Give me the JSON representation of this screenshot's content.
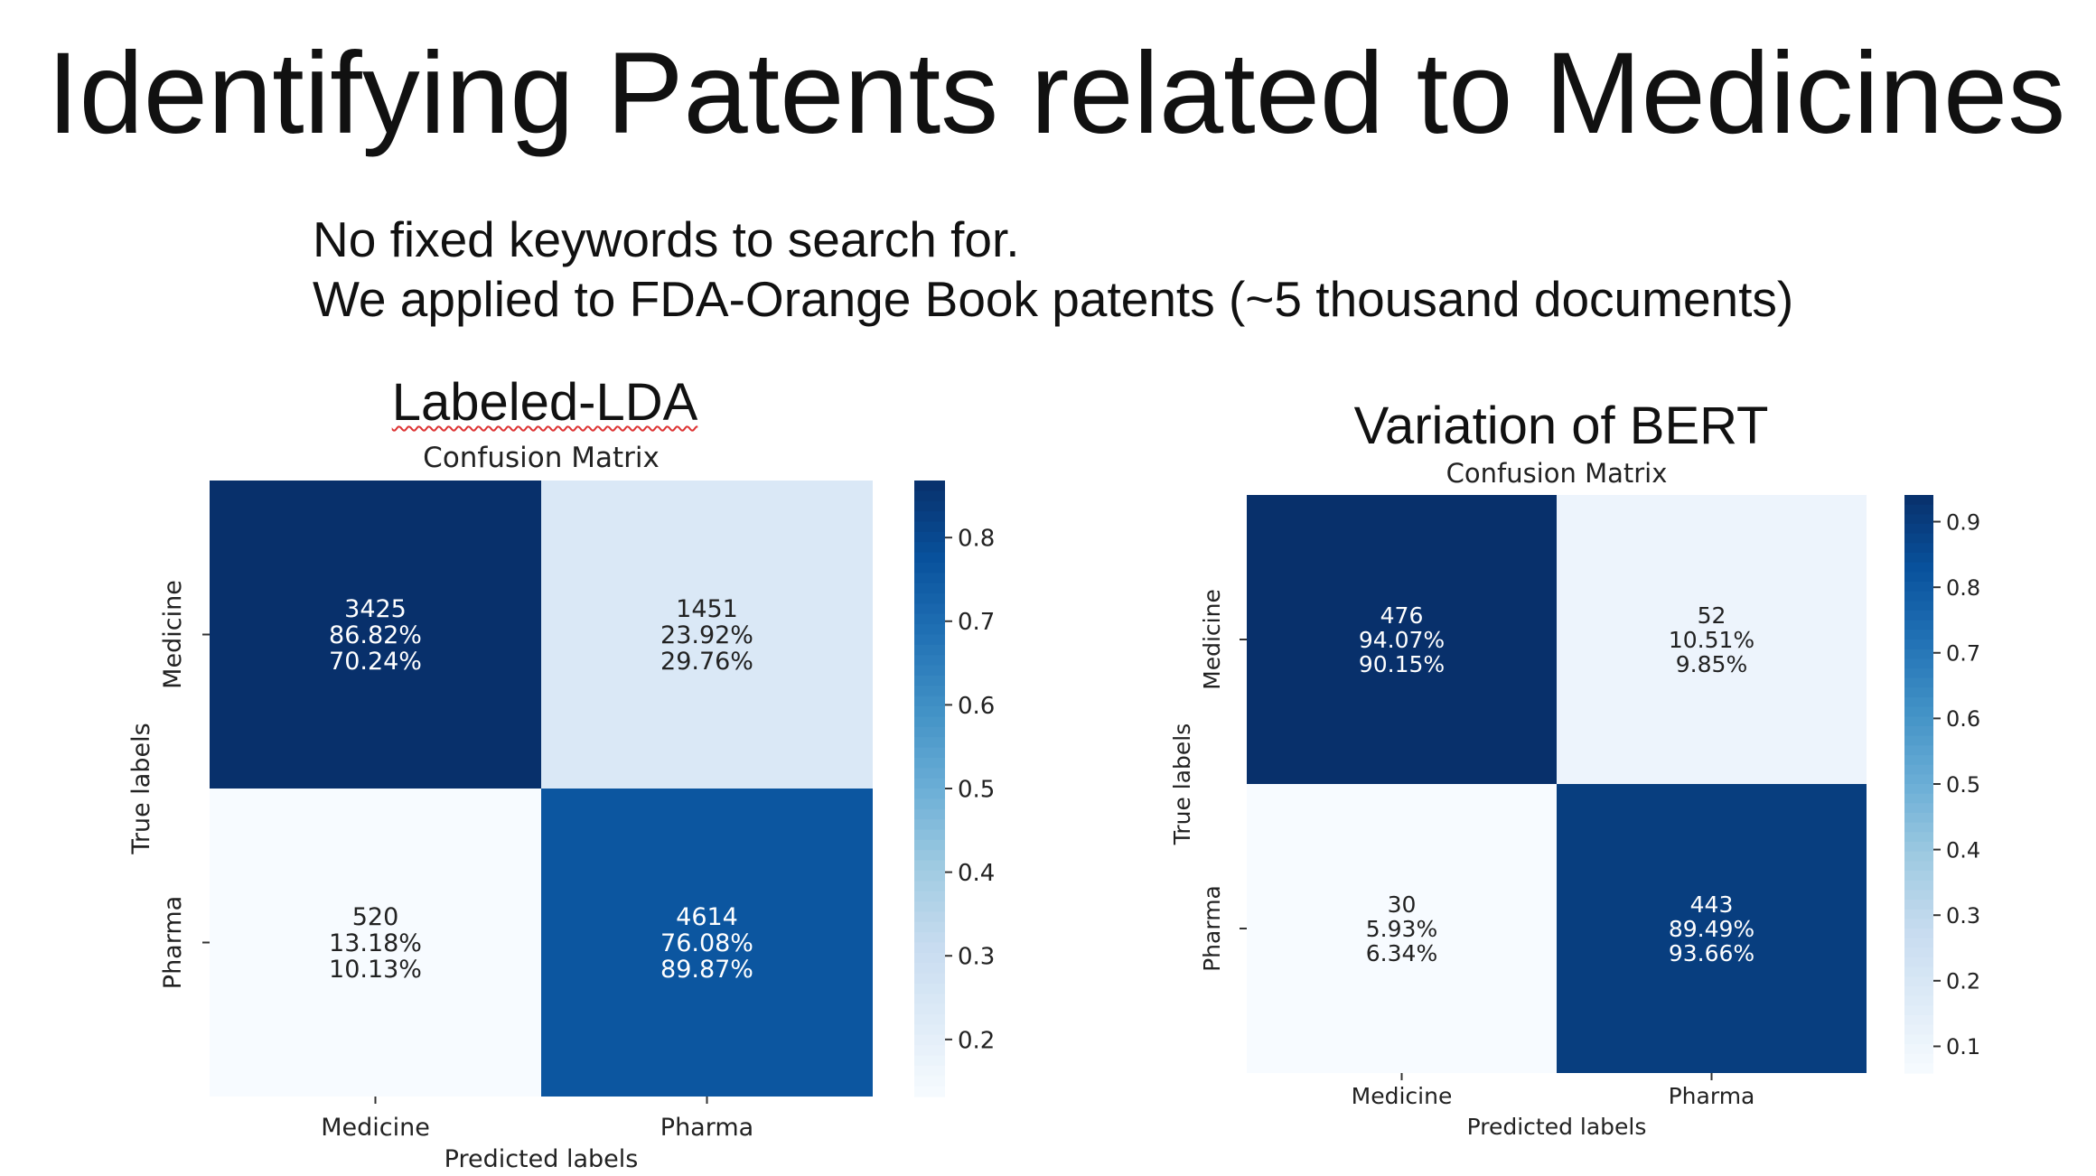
{
  "slide": {
    "title": "Identifying Patents related to Medicines",
    "bullets": [
      "No fixed keywords to search for.",
      "We applied to FDA-Orange Book patents (~5 thousand documents)"
    ]
  },
  "headings": {
    "lda": "Labeled-LDA",
    "bert": "Variation of BERT"
  },
  "chart_data": [
    {
      "type": "heatmap",
      "title": "Confusion Matrix",
      "xlabel": "Predicted labels",
      "ylabel": "True labels",
      "x_categories": [
        "Medicine",
        "Pharma"
      ],
      "y_categories": [
        "Medicine",
        "Pharma"
      ],
      "cells": [
        [
          {
            "count": "3425",
            "row_pct": "86.82%",
            "col_pct": "70.24%",
            "value": 0.8682
          },
          {
            "count": "1451",
            "row_pct": "23.92%",
            "col_pct": "29.76%",
            "value": 0.2392
          }
        ],
        [
          {
            "count": "520",
            "row_pct": "13.18%",
            "col_pct": "10.13%",
            "value": 0.1318
          },
          {
            "count": "4614",
            "row_pct": "76.08%",
            "col_pct": "89.87%",
            "value": 0.7608
          }
        ]
      ],
      "colorbar": {
        "min": 0.1318,
        "max": 0.8682,
        "ticks": [
          0.2,
          0.3,
          0.4,
          0.5,
          0.6,
          0.7,
          0.8
        ]
      },
      "colormap": "Blues"
    },
    {
      "type": "heatmap",
      "title": "Confusion Matrix",
      "xlabel": "Predicted labels",
      "ylabel": "True labels",
      "x_categories": [
        "Medicine",
        "Pharma"
      ],
      "y_categories": [
        "Medicine",
        "Pharma"
      ],
      "cells": [
        [
          {
            "count": "476",
            "row_pct": "94.07%",
            "col_pct": "90.15%",
            "value": 0.9407
          },
          {
            "count": "52",
            "row_pct": "10.51%",
            "col_pct": "9.85%",
            "value": 0.1051
          }
        ],
        [
          {
            "count": "30",
            "row_pct": "5.93%",
            "col_pct": "6.34%",
            "value": 0.0593
          },
          {
            "count": "443",
            "row_pct": "89.49%",
            "col_pct": "93.66%",
            "value": 0.8949
          }
        ]
      ],
      "colorbar": {
        "min": 0.0593,
        "max": 0.9407,
        "ticks": [
          0.1,
          0.2,
          0.3,
          0.4,
          0.5,
          0.6,
          0.7,
          0.8,
          0.9
        ]
      },
      "colormap": "Blues"
    }
  ]
}
